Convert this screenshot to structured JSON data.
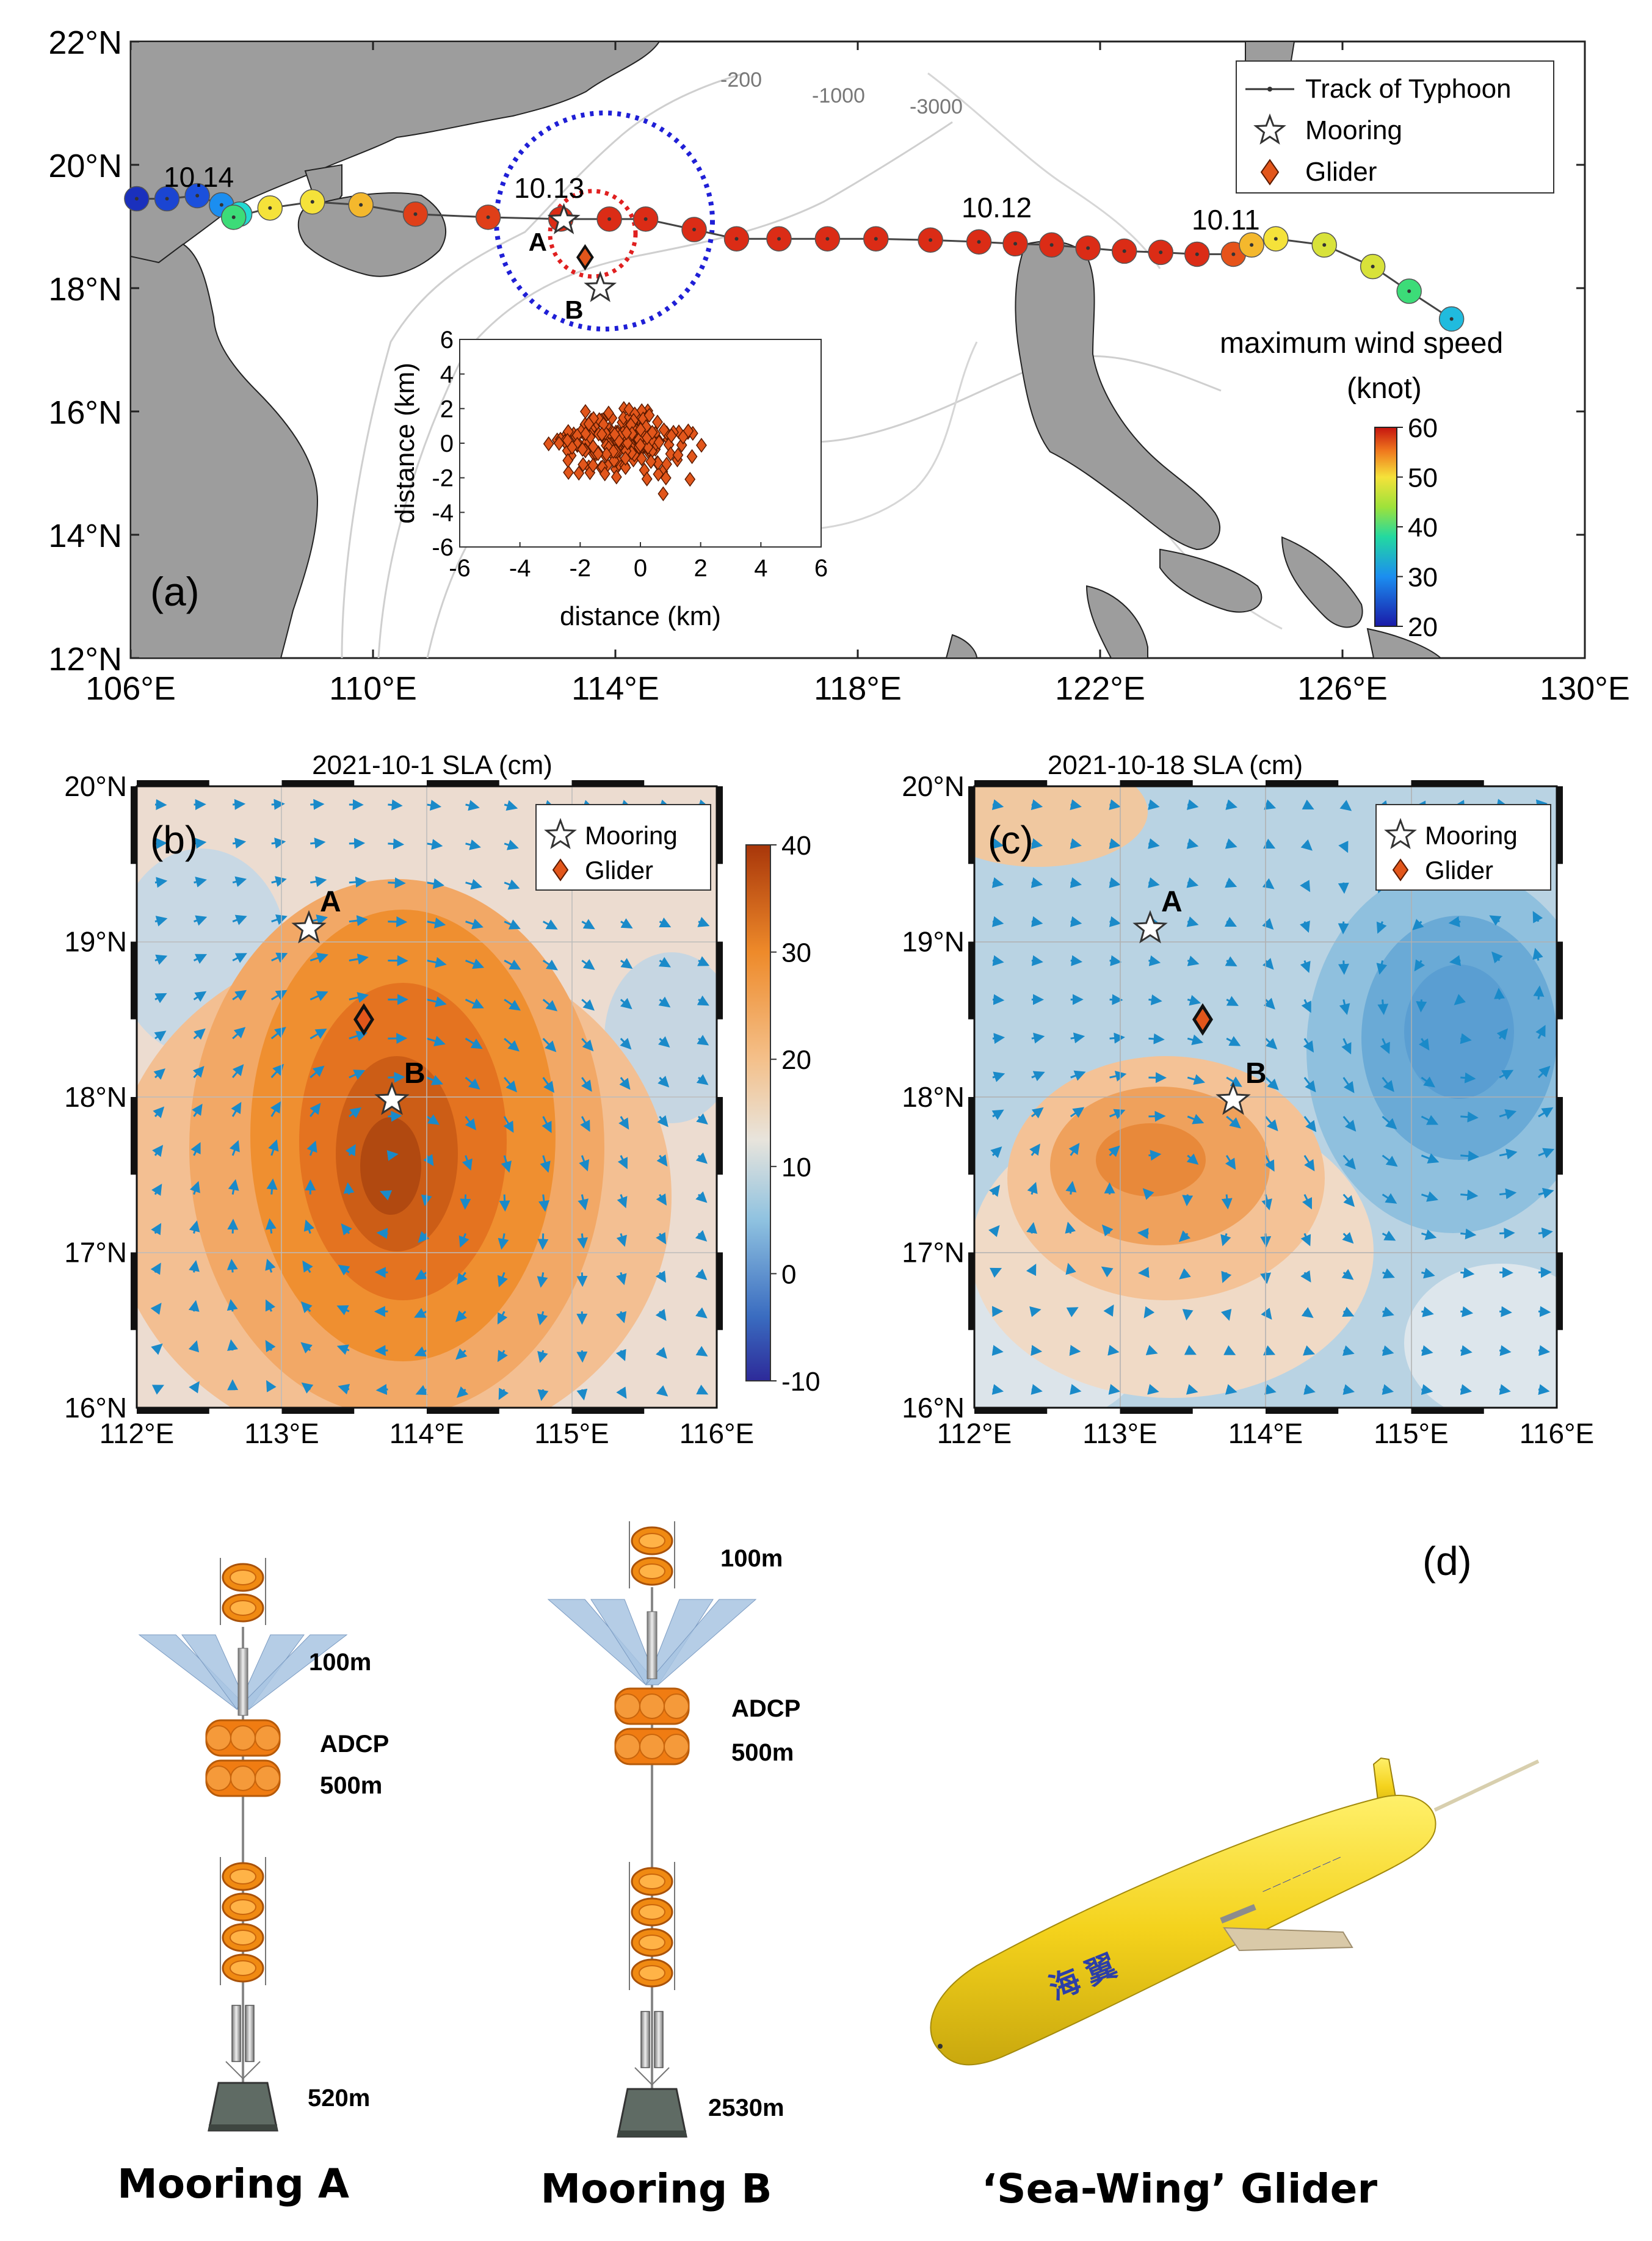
{
  "panel_a": {
    "label": "(a)",
    "lon_ticks": [
      "106°E",
      "110°E",
      "114°E",
      "118°E",
      "122°E",
      "126°E",
      "130°E"
    ],
    "lat_ticks": [
      "12°N",
      "14°N",
      "16°N",
      "18°N",
      "20°N",
      "22°N"
    ],
    "contours": [
      "-200",
      "-1000",
      "-3000"
    ],
    "date_labels": [
      "10.14",
      "10.13",
      "10.12",
      "10.11"
    ],
    "legend": {
      "track": "Track of Typhoon",
      "mooring": "Mooring",
      "glider": "Glider"
    },
    "moorings": [
      {
        "name": "A",
        "lon": 113.15,
        "lat": 19.1
      },
      {
        "name": "B",
        "lon": 113.75,
        "lat": 18.0
      }
    ],
    "glider": {
      "lon": 113.5,
      "lat": 18.5
    },
    "track": [
      {
        "lon": 106.1,
        "lat": 19.45,
        "wind": 22
      },
      {
        "lon": 106.6,
        "lat": 19.45,
        "wind": 24
      },
      {
        "lon": 107.1,
        "lat": 19.5,
        "wind": 25
      },
      {
        "lon": 107.5,
        "lat": 19.35,
        "wind": 30
      },
      {
        "lon": 107.8,
        "lat": 19.2,
        "wind": 35
      },
      {
        "lon": 107.7,
        "lat": 19.15,
        "wind": 40
      },
      {
        "lon": 108.3,
        "lat": 19.3,
        "wind": 48
      },
      {
        "lon": 109.0,
        "lat": 19.4,
        "wind": 48
      },
      {
        "lon": 109.8,
        "lat": 19.35,
        "wind": 51
      },
      {
        "lon": 110.7,
        "lat": 19.2,
        "wind": 58
      },
      {
        "lon": 111.9,
        "lat": 19.15,
        "wind": 58
      },
      {
        "lon": 113.1,
        "lat": 19.12,
        "wind": 59
      },
      {
        "lon": 113.9,
        "lat": 19.12,
        "wind": 59
      },
      {
        "lon": 114.5,
        "lat": 19.12,
        "wind": 59
      },
      {
        "lon": 115.3,
        "lat": 18.95,
        "wind": 59
      },
      {
        "lon": 116.0,
        "lat": 18.8,
        "wind": 59
      },
      {
        "lon": 116.7,
        "lat": 18.8,
        "wind": 59
      },
      {
        "lon": 117.5,
        "lat": 18.8,
        "wind": 59
      },
      {
        "lon": 118.3,
        "lat": 18.8,
        "wind": 59
      },
      {
        "lon": 119.2,
        "lat": 18.78,
        "wind": 59
      },
      {
        "lon": 120.0,
        "lat": 18.75,
        "wind": 59
      },
      {
        "lon": 120.6,
        "lat": 18.72,
        "wind": 59
      },
      {
        "lon": 121.2,
        "lat": 18.7,
        "wind": 59
      },
      {
        "lon": 121.8,
        "lat": 18.65,
        "wind": 59
      },
      {
        "lon": 122.4,
        "lat": 18.6,
        "wind": 59
      },
      {
        "lon": 123.0,
        "lat": 18.58,
        "wind": 59
      },
      {
        "lon": 123.6,
        "lat": 18.55,
        "wind": 59
      },
      {
        "lon": 124.2,
        "lat": 18.55,
        "wind": 57
      },
      {
        "lon": 124.5,
        "lat": 18.7,
        "wind": 51
      },
      {
        "lon": 124.9,
        "lat": 18.8,
        "wind": 48
      },
      {
        "lon": 125.7,
        "lat": 18.7,
        "wind": 47
      },
      {
        "lon": 126.5,
        "lat": 18.35,
        "wind": 47
      },
      {
        "lon": 127.1,
        "lat": 17.95,
        "wind": 40
      },
      {
        "lon": 127.8,
        "lat": 17.5,
        "wind": 33
      }
    ],
    "colorbar": {
      "title1": "maximum wind speed",
      "title2": "(knot)",
      "ticks": [
        "60",
        "50",
        "40",
        "30",
        "20"
      ]
    },
    "inset": {
      "xlabel": "distance (km)",
      "ylabel": "distance (km)",
      "xticks": [
        "-6",
        "-4",
        "-2",
        "0",
        "2",
        "4",
        "6"
      ],
      "yticks": [
        "6",
        "4",
        "2",
        "0",
        "-2",
        "-4",
        "-6"
      ]
    }
  },
  "panel_b": {
    "label": "(b)",
    "title": "2021-10-1 SLA (cm)",
    "lon_ticks": [
      "112°E",
      "113°E",
      "114°E",
      "115°E",
      "116°E"
    ],
    "lat_ticks": [
      "16°N",
      "17°N",
      "18°N",
      "19°N",
      "20°N"
    ],
    "legend": {
      "mooring": "Mooring",
      "glider": "Glider"
    },
    "mooring_labels": [
      "A",
      "B"
    ],
    "colorbar_ticks": [
      "40",
      "30",
      "20",
      "10",
      "0",
      "-10"
    ]
  },
  "panel_c": {
    "label": "(c)",
    "title": "2021-10-18 SLA (cm)",
    "lon_ticks": [
      "112°E",
      "113°E",
      "114°E",
      "115°E",
      "116°E"
    ],
    "lat_ticks": [
      "16°N",
      "17°N",
      "18°N",
      "19°N",
      "20°N"
    ],
    "legend": {
      "mooring": "Mooring",
      "glider": "Glider"
    },
    "mooring_labels": [
      "A",
      "B"
    ]
  },
  "panel_d": {
    "label": "(d)",
    "mooring_a": {
      "name": "Mooring A",
      "depths": [
        "100m",
        "ADCP",
        "500m",
        "520m"
      ]
    },
    "mooring_b": {
      "name": "Mooring B",
      "depths": [
        "100m",
        "ADCP",
        "500m",
        "2530m"
      ]
    },
    "glider": {
      "name": "‘Sea-Wing’  Glider",
      "hull_text": "海 翼"
    }
  },
  "colors": {
    "land": "#9d9d9d",
    "track": "#444444",
    "blue_circle": "#1f1fd6",
    "red_circle": "#e02020",
    "glider": "#e2561b",
    "arrow": "#1a8ac9",
    "glider_body": "#f4d21c"
  }
}
